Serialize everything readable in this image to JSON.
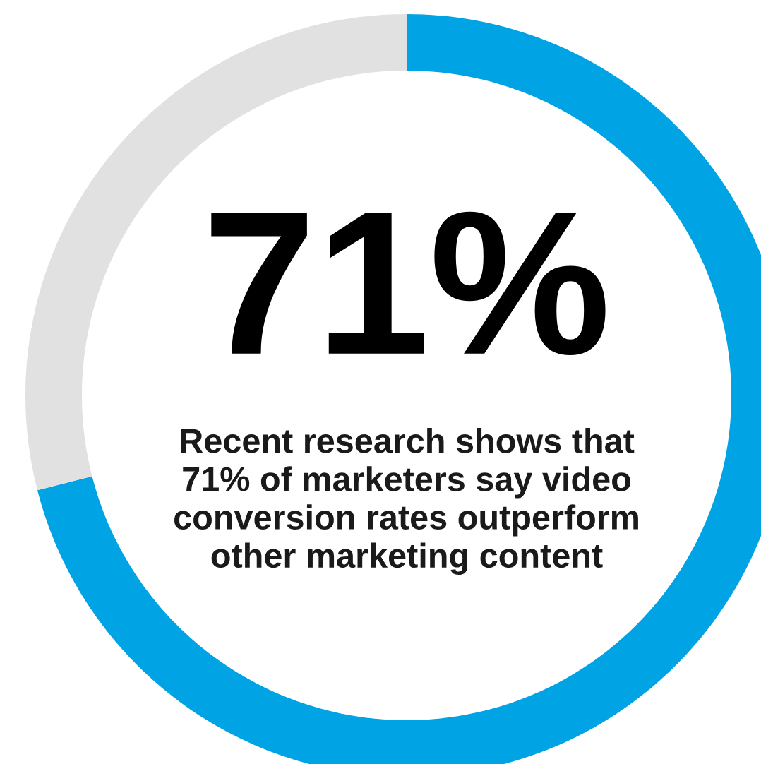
{
  "chart_data": {
    "type": "donut",
    "title": "71%",
    "subtitle": "Recent research shows that\n71% of marketers say video\nconversion rates outperform\nother marketing content",
    "categories": [
      null,
      null
    ],
    "values": [
      71,
      29
    ],
    "colors": [
      "#00a3e4",
      "#e1e1e1"
    ]
  }
}
